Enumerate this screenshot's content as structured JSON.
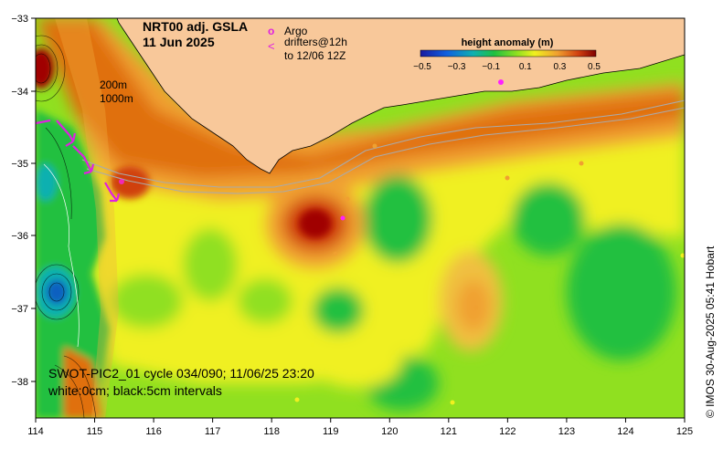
{
  "map": {
    "title_line1": "NRT00 adj. GSLA",
    "title_line2": "11 Jun 2025",
    "legend_argo": "Argo",
    "legend_drifters_line1": "drifters@12h",
    "legend_drifters_line2": "to 12/06 12Z",
    "legend_argo_symbol": "o",
    "legend_drifter_symbol": "<",
    "contour_200": "200m",
    "contour_1000": "1000m",
    "swot_line1": "SWOT-PIC2_01 cycle 034/090; 11/06/25 23:20",
    "swot_line2": "white:0cm; black:5cm intervals",
    "credit": "© IMOS 30-Aug-2025 05:41 Hobart",
    "colorbar": {
      "title": "height anomaly (m)",
      "ticks": [
        "−0.5",
        "−0.3",
        "−0.1",
        "0.1",
        "0.3",
        "0.5"
      ],
      "range": [
        -0.5,
        0.5
      ]
    },
    "x_ticks": [
      "114",
      "115",
      "116",
      "117",
      "118",
      "119",
      "120",
      "121",
      "122",
      "123",
      "124",
      "125"
    ],
    "y_ticks": [
      "−33",
      "−34",
      "−35",
      "−36",
      "−37",
      "−38"
    ],
    "colors": {
      "land": "#f8c89a",
      "strong_positive": "#a00000",
      "positive": "#e07010",
      "mild_positive": "#f0b040",
      "neutral": "#f0f020",
      "mild_negative": "#90e020",
      "negative": "#20c040",
      "strong_negative": "#1060c0",
      "argo": "#ff20ff",
      "drifter": "#e020e0"
    }
  }
}
